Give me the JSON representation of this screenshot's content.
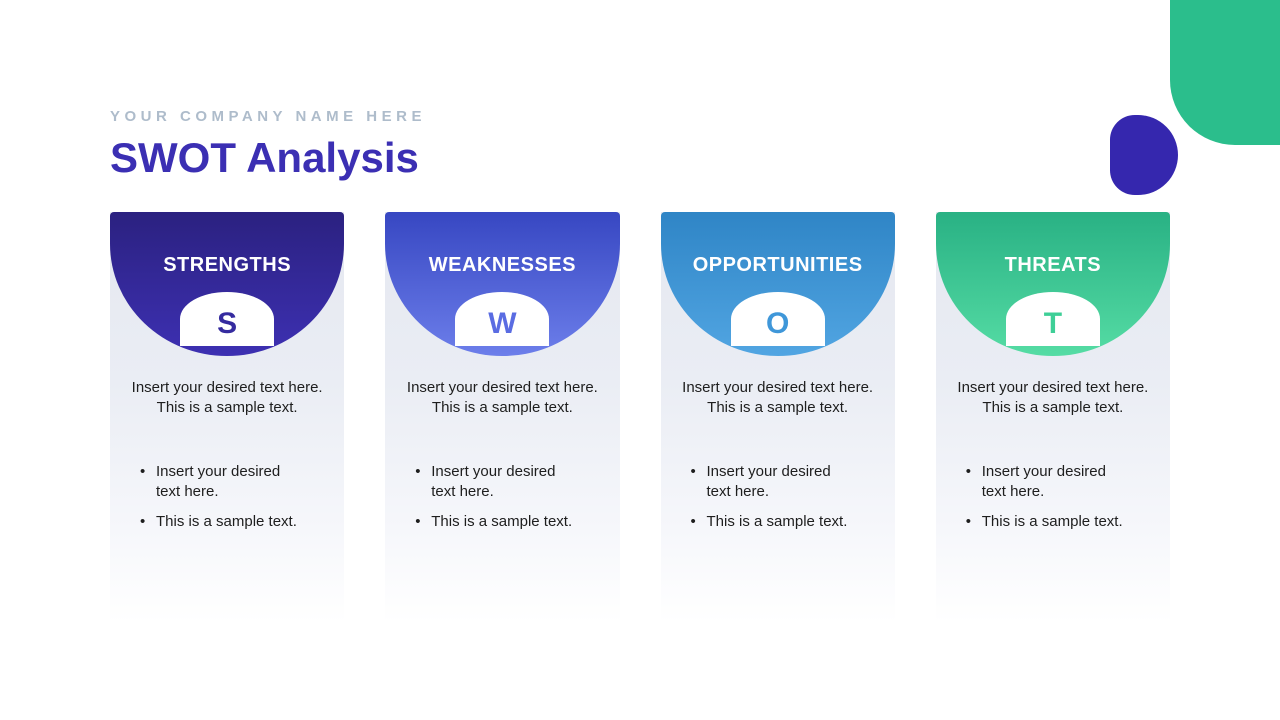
{
  "brand": {
    "company_name": "YOUR COMPANY NAME HERE",
    "title": "SWOT Analysis",
    "title_color": "#3b2fb3",
    "company_name_color": "#aebccb"
  },
  "decor": {
    "green_shape_color": "#2bbe8c",
    "purple_shape_color": "#3527ae"
  },
  "columns": [
    {
      "key": "strengths",
      "title": "STRENGTHS",
      "letter": "S",
      "gradient_top": "#2b2180",
      "gradient_bottom": "#3d30b2",
      "letter_color": "#352b9f",
      "paragraph": "Insert your desired text here. This is a sample text.",
      "bullets": [
        "Insert your desired text here.",
        "This is a sample text."
      ]
    },
    {
      "key": "weaknesses",
      "title": "WEAKNESSES",
      "letter": "W",
      "gradient_top": "#3747c2",
      "gradient_bottom": "#6c7eea",
      "letter_color": "#5a6ce2",
      "paragraph": "Insert your desired text here. This is a sample text.",
      "bullets": [
        "Insert your desired text here.",
        "This is a sample text."
      ]
    },
    {
      "key": "opportunities",
      "title": "OPPORTUNITIES",
      "letter": "O",
      "gradient_top": "#2f85c6",
      "gradient_bottom": "#51a5e2",
      "letter_color": "#3f97d9",
      "paragraph": "Insert your desired text here. This is a sample text.",
      "bullets": [
        "Insert your desired text here.",
        "This is a sample text."
      ]
    },
    {
      "key": "threats",
      "title": "THREATS",
      "letter": "T",
      "gradient_top": "#29b184",
      "gradient_bottom": "#55dca4",
      "letter_color": "#3ecf97",
      "paragraph": "Insert your desired text here. This is a sample text.",
      "bullets": [
        "Insert your desired text here.",
        "This is a sample text."
      ]
    }
  ]
}
